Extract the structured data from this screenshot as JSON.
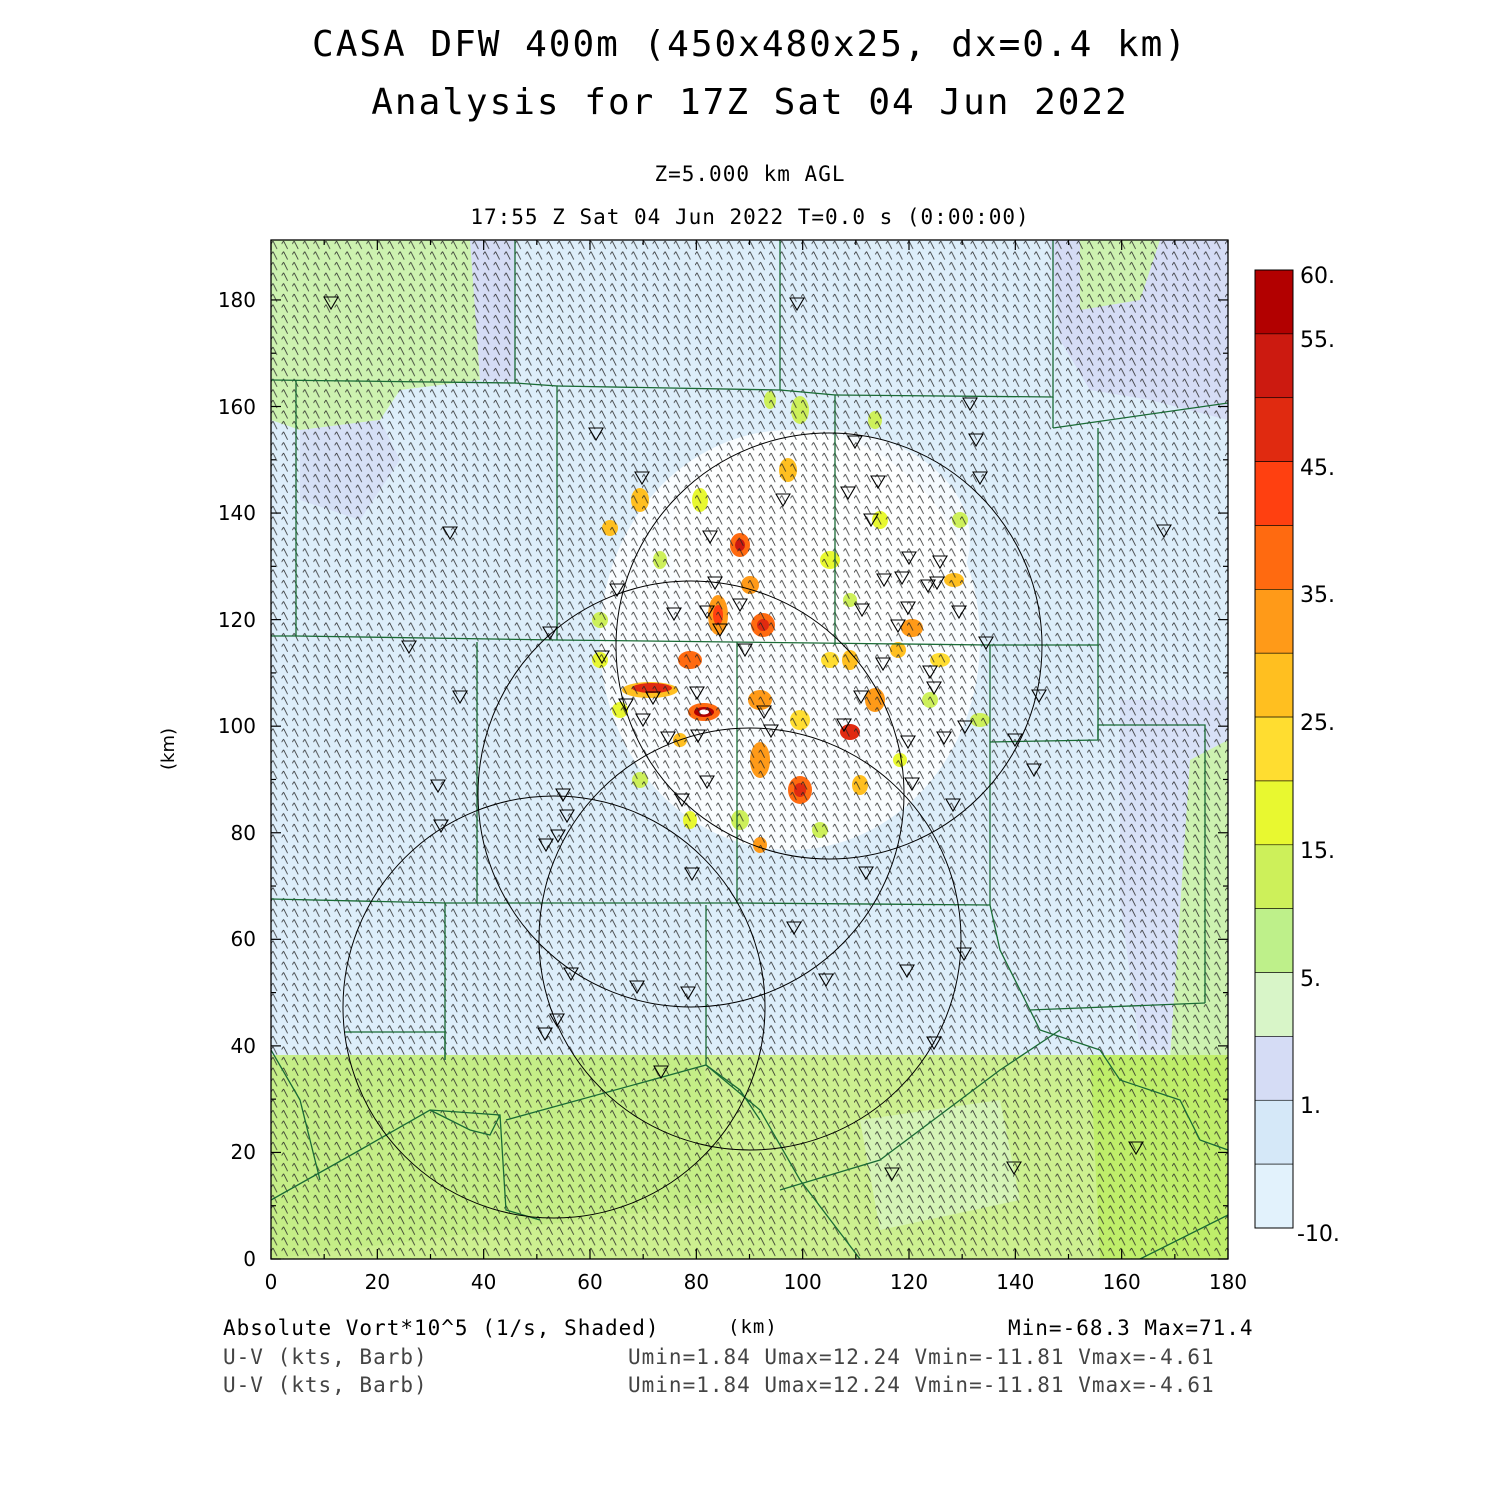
{
  "header": {
    "title_line1": "CASA DFW 400m (450x480x25, dx=0.4 km)",
    "title_line2": "Analysis for 17Z Sat 04 Jun 2022",
    "level": "Z=5.000 km AGL",
    "valid_time": "17:55 Z Sat 04 Jun 2022   T=0.0 s (0:00:00)"
  },
  "axes": {
    "ylabel": "(km)",
    "xlabel": "(km)",
    "x_ticks": [
      "0",
      "20",
      "40",
      "60",
      "80",
      "100",
      "120",
      "140",
      "160",
      "180"
    ],
    "y_ticks": [
      "0",
      "20",
      "40",
      "60",
      "80",
      "100",
      "120",
      "140",
      "160",
      "180"
    ]
  },
  "colorbar": {
    "labels": [
      "60.",
      "55.",
      "45.",
      "35.",
      "25.",
      "15.",
      "5.",
      "1.",
      "-10."
    ],
    "colors": [
      "#b20000",
      "#cc1a10",
      "#e02a10",
      "#ff4010",
      "#ff6a10",
      "#ff9a18",
      "#ffbf20",
      "#ffdd30",
      "#e8f830",
      "#cdf05a",
      "#bef08a",
      "#d8f5c8",
      "#d5dcf5",
      "#d5e8f8",
      "#e2f2fc"
    ]
  },
  "footer": {
    "field1": "Absolute Vort*10^5 (1/s, Shaded)",
    "units": "(km)",
    "minmax": "Min=-68.3 Max=71.4",
    "field2": "U-V (kts, Barb)",
    "uv_stats": "Umin=1.84 Umax=12.24 Vmin=-11.81 Vmax=-4.61",
    "field3": "U-V (kts, Barb)",
    "uv_stats2": "Umin=1.84 Umax=12.24 Vmin=-11.81 Vmax=-4.61"
  }
}
